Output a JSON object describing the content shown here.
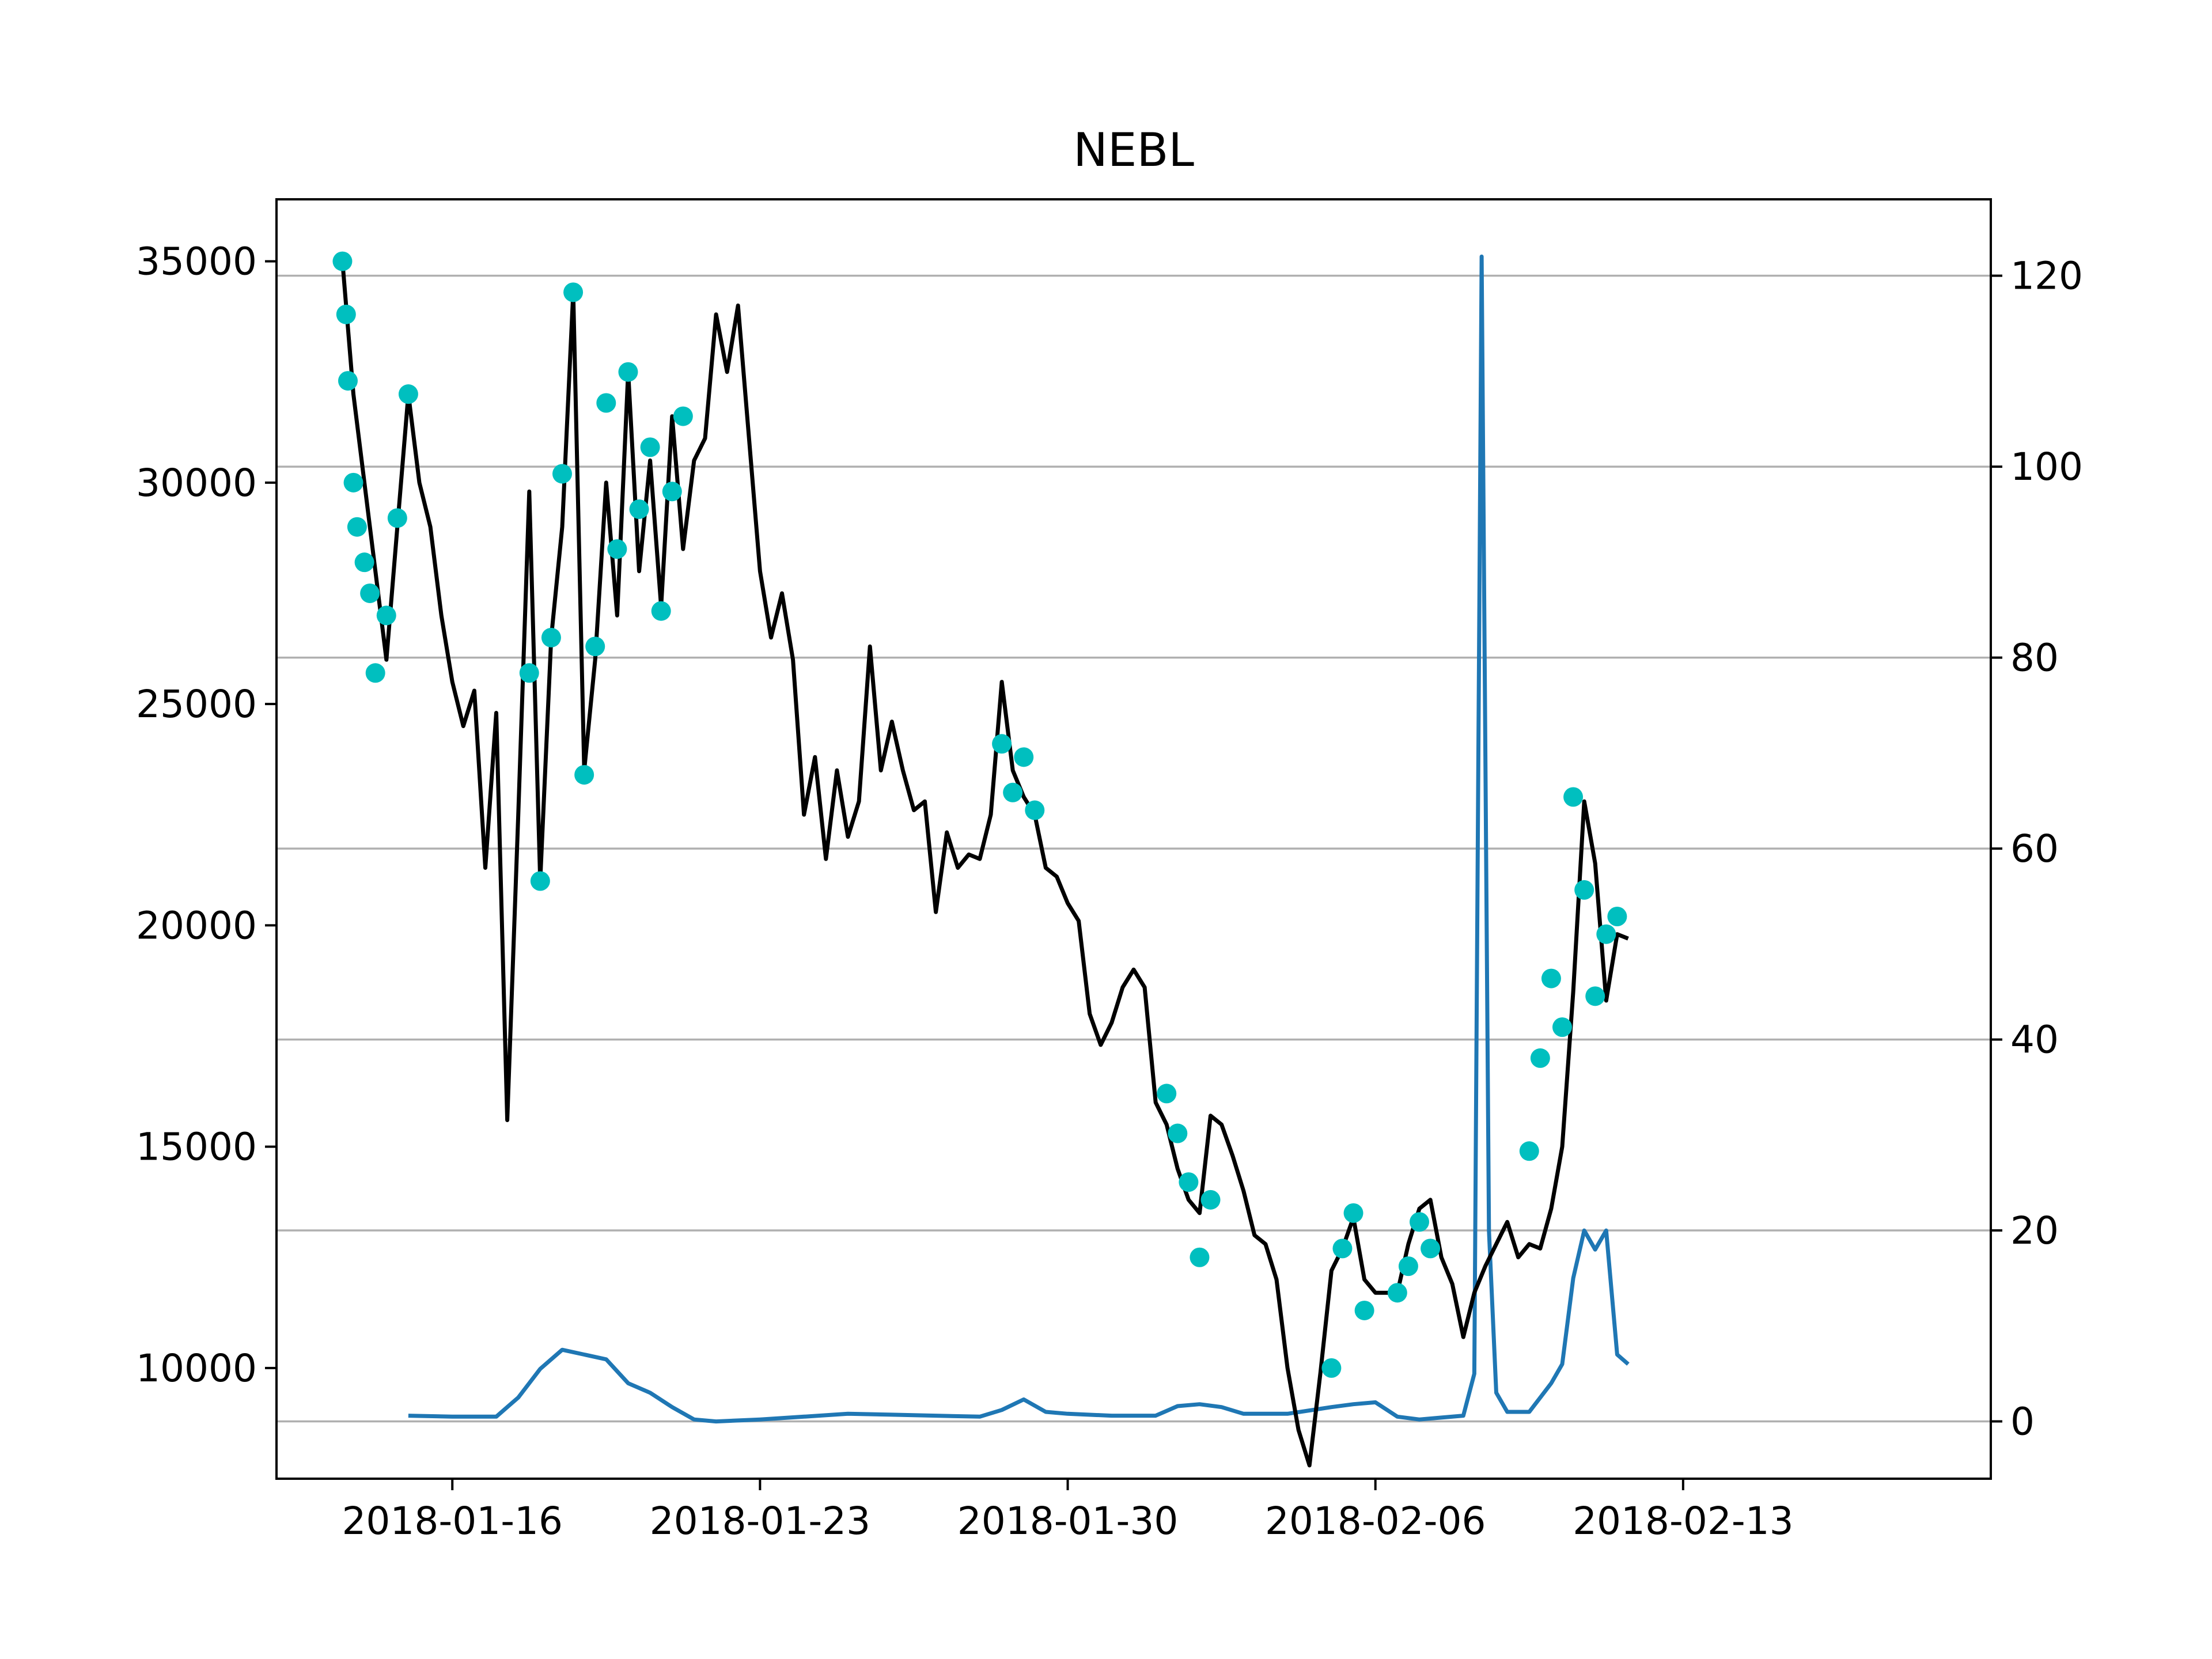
{
  "chart_data": {
    "type": "line",
    "title": "NEBL",
    "xlabel": "",
    "ylabel_left": "",
    "ylabel_right": "",
    "grid": "horizontal (right axis)",
    "x_range": [
      "2018-01-12",
      "2018-02-20"
    ],
    "x_ticks": [
      "2018-01-16",
      "2018-01-23",
      "2018-01-30",
      "2018-02-06",
      "2018-02-13"
    ],
    "left_axis": {
      "ylim": [
        7500,
        36400
      ],
      "ticks": [
        10000,
        15000,
        20000,
        25000,
        30000,
        35000
      ]
    },
    "right_axis": {
      "ylim": [
        -6,
        128
      ],
      "ticks": [
        0,
        20,
        40,
        60,
        80,
        100,
        120
      ]
    },
    "colors": {
      "price": "#000000",
      "markers": "#00bfbf",
      "volume": "#1f77b4",
      "grid": "#b0b0b0"
    },
    "series": [
      {
        "axis": "left",
        "color": "#000000",
        "points": [
          [
            "2018-01-13T12:00",
            35000
          ],
          [
            "2018-01-13T18:00",
            32000
          ],
          [
            "2018-01-14T00:00",
            30000
          ],
          [
            "2018-01-14T06:00",
            28000
          ],
          [
            "2018-01-14T12:00",
            26000
          ],
          [
            "2018-01-14T18:00",
            29000
          ],
          [
            "2018-01-15T00:00",
            32000
          ],
          [
            "2018-01-15T06:00",
            30000
          ],
          [
            "2018-01-15T12:00",
            29000
          ],
          [
            "2018-01-15T18:00",
            27000
          ],
          [
            "2018-01-16T00:00",
            25500
          ],
          [
            "2018-01-16T06:00",
            24500
          ],
          [
            "2018-01-16T12:00",
            25300
          ],
          [
            "2018-01-16T18:00",
            21300
          ],
          [
            "2018-01-17T00:00",
            24800
          ],
          [
            "2018-01-17T06:00",
            15600
          ],
          [
            "2018-01-17T12:00",
            22500
          ],
          [
            "2018-01-17T18:00",
            29800
          ],
          [
            "2018-01-18T00:00",
            21000
          ],
          [
            "2018-01-18T06:00",
            26500
          ],
          [
            "2018-01-18T12:00",
            29000
          ],
          [
            "2018-01-18T18:00",
            34300
          ],
          [
            "2018-01-19T00:00",
            23500
          ],
          [
            "2018-01-19T06:00",
            26000
          ],
          [
            "2018-01-19T12:00",
            30000
          ],
          [
            "2018-01-19T18:00",
            27000
          ],
          [
            "2018-01-20T00:00",
            32500
          ],
          [
            "2018-01-20T06:00",
            28000
          ],
          [
            "2018-01-20T12:00",
            30500
          ],
          [
            "2018-01-20T18:00",
            27200
          ],
          [
            "2018-01-21T00:00",
            31500
          ],
          [
            "2018-01-21T06:00",
            28500
          ],
          [
            "2018-01-21T12:00",
            30500
          ],
          [
            "2018-01-21T18:00",
            31000
          ],
          [
            "2018-01-22T00:00",
            33800
          ],
          [
            "2018-01-22T06:00",
            32500
          ],
          [
            "2018-01-22T12:00",
            34000
          ],
          [
            "2018-01-22T18:00",
            31000
          ],
          [
            "2018-01-23T00:00",
            28000
          ],
          [
            "2018-01-23T06:00",
            26500
          ],
          [
            "2018-01-23T12:00",
            27500
          ],
          [
            "2018-01-23T18:00",
            26000
          ],
          [
            "2018-01-24T00:00",
            22500
          ],
          [
            "2018-01-24T06:00",
            23800
          ],
          [
            "2018-01-24T12:00",
            21500
          ],
          [
            "2018-01-24T18:00",
            23500
          ],
          [
            "2018-01-25T00:00",
            22000
          ],
          [
            "2018-01-25T06:00",
            22800
          ],
          [
            "2018-01-25T12:00",
            26300
          ],
          [
            "2018-01-25T18:00",
            23500
          ],
          [
            "2018-01-26T00:00",
            24600
          ],
          [
            "2018-01-26T06:00",
            23500
          ],
          [
            "2018-01-26T12:00",
            22600
          ],
          [
            "2018-01-26T18:00",
            22800
          ],
          [
            "2018-01-27T00:00",
            20300
          ],
          [
            "2018-01-27T06:00",
            22100
          ],
          [
            "2018-01-27T12:00",
            21300
          ],
          [
            "2018-01-27T18:00",
            21600
          ],
          [
            "2018-01-28T00:00",
            21500
          ],
          [
            "2018-01-28T06:00",
            22500
          ],
          [
            "2018-01-28T12:00",
            25500
          ],
          [
            "2018-01-28T18:00",
            23500
          ],
          [
            "2018-01-29T00:00",
            22900
          ],
          [
            "2018-01-29T06:00",
            22500
          ],
          [
            "2018-01-29T12:00",
            21300
          ],
          [
            "2018-01-29T18:00",
            21100
          ],
          [
            "2018-01-30T00:00",
            20500
          ],
          [
            "2018-01-30T06:00",
            20100
          ],
          [
            "2018-01-30T12:00",
            18000
          ],
          [
            "2018-01-30T18:00",
            17300
          ],
          [
            "2018-01-31T00:00",
            17800
          ],
          [
            "2018-01-31T06:00",
            18600
          ],
          [
            "2018-01-31T12:00",
            19000
          ],
          [
            "2018-01-31T18:00",
            18600
          ],
          [
            "2018-02-01T00:00",
            16000
          ],
          [
            "2018-02-01T06:00",
            15500
          ],
          [
            "2018-02-01T12:00",
            14500
          ],
          [
            "2018-02-01T18:00",
            13800
          ],
          [
            "2018-02-02T00:00",
            13500
          ],
          [
            "2018-02-02T06:00",
            15700
          ],
          [
            "2018-02-02T12:00",
            15500
          ],
          [
            "2018-02-02T18:00",
            14800
          ],
          [
            "2018-02-03T00:00",
            14000
          ],
          [
            "2018-02-03T06:00",
            13000
          ],
          [
            "2018-02-03T12:00",
            12800
          ],
          [
            "2018-02-03T18:00",
            12000
          ],
          [
            "2018-02-04T00:00",
            10000
          ],
          [
            "2018-02-04T06:00",
            8600
          ],
          [
            "2018-02-04T12:00",
            7800
          ],
          [
            "2018-02-04T18:00",
            9900
          ],
          [
            "2018-02-05T00:00",
            12200
          ],
          [
            "2018-02-05T06:00",
            12700
          ],
          [
            "2018-02-05T12:00",
            13400
          ],
          [
            "2018-02-05T18:00",
            12000
          ],
          [
            "2018-02-06T00:00",
            11700
          ],
          [
            "2018-02-06T06:00",
            11700
          ],
          [
            "2018-02-06T12:00",
            11700
          ],
          [
            "2018-02-06T18:00",
            12800
          ],
          [
            "2018-02-07T00:00",
            13600
          ],
          [
            "2018-02-07T06:00",
            13800
          ],
          [
            "2018-02-07T12:00",
            12500
          ],
          [
            "2018-02-07T18:00",
            11900
          ],
          [
            "2018-02-08T00:00",
            10700
          ],
          [
            "2018-02-08T06:00",
            11700
          ],
          [
            "2018-02-08T12:00",
            12300
          ],
          [
            "2018-02-08T18:00",
            12800
          ],
          [
            "2018-02-09T00:00",
            13300
          ],
          [
            "2018-02-09T06:00",
            12500
          ],
          [
            "2018-02-09T12:00",
            12800
          ],
          [
            "2018-02-09T18:00",
            12700
          ],
          [
            "2018-02-10T00:00",
            13600
          ],
          [
            "2018-02-10T06:00",
            15000
          ],
          [
            "2018-02-10T12:00",
            18500
          ],
          [
            "2018-02-10T18:00",
            22800
          ],
          [
            "2018-02-11T00:00",
            21400
          ],
          [
            "2018-02-11T06:00",
            18300
          ],
          [
            "2018-02-11T12:00",
            19800
          ],
          [
            "2018-02-11T18:00",
            19700
          ]
        ]
      },
      {
        "axis": "left",
        "color": "#00bfbf",
        "markers_only": true,
        "points": [
          [
            "2018-01-13T12:00",
            35000
          ],
          [
            "2018-01-13T14:00",
            33800
          ],
          [
            "2018-01-13T15:00",
            32300
          ],
          [
            "2018-01-13T18:00",
            30000
          ],
          [
            "2018-01-13T20:00",
            29000
          ],
          [
            "2018-01-14T00:00",
            28200
          ],
          [
            "2018-01-14T03:00",
            27500
          ],
          [
            "2018-01-14T06:00",
            25700
          ],
          [
            "2018-01-14T12:00",
            27000
          ],
          [
            "2018-01-14T18:00",
            29200
          ],
          [
            "2018-01-15T00:00",
            32000
          ],
          [
            "2018-01-17T18:00",
            25700
          ],
          [
            "2018-01-18T00:00",
            21000
          ],
          [
            "2018-01-18T06:00",
            26500
          ],
          [
            "2018-01-18T12:00",
            30200
          ],
          [
            "2018-01-18T18:00",
            34300
          ],
          [
            "2018-01-19T00:00",
            23400
          ],
          [
            "2018-01-19T06:00",
            26300
          ],
          [
            "2018-01-19T12:00",
            31800
          ],
          [
            "2018-01-19T18:00",
            28500
          ],
          [
            "2018-01-20T00:00",
            32500
          ],
          [
            "2018-01-20T06:00",
            29400
          ],
          [
            "2018-01-20T12:00",
            30800
          ],
          [
            "2018-01-20T18:00",
            27100
          ],
          [
            "2018-01-21T00:00",
            29800
          ],
          [
            "2018-01-21T06:00",
            31500
          ],
          [
            "2018-01-28T12:00",
            24100
          ],
          [
            "2018-01-28T18:00",
            23000
          ],
          [
            "2018-01-29T00:00",
            23800
          ],
          [
            "2018-01-29T06:00",
            22600
          ],
          [
            "2018-02-01T06:00",
            16200
          ],
          [
            "2018-02-01T12:00",
            15300
          ],
          [
            "2018-02-01T18:00",
            14200
          ],
          [
            "2018-02-02T00:00",
            12500
          ],
          [
            "2018-02-02T06:00",
            13800
          ],
          [
            "2018-02-05T00:00",
            10000
          ],
          [
            "2018-02-05T06:00",
            12700
          ],
          [
            "2018-02-05T12:00",
            13500
          ],
          [
            "2018-02-05T18:00",
            11300
          ],
          [
            "2018-02-06T12:00",
            11700
          ],
          [
            "2018-02-06T18:00",
            12300
          ],
          [
            "2018-02-07T00:00",
            13300
          ],
          [
            "2018-02-07T06:00",
            12700
          ],
          [
            "2018-02-09T12:00",
            14900
          ],
          [
            "2018-02-09T18:00",
            17000
          ],
          [
            "2018-02-10T00:00",
            18800
          ],
          [
            "2018-02-10T06:00",
            17700
          ],
          [
            "2018-02-10T12:00",
            22900
          ],
          [
            "2018-02-10T18:00",
            20800
          ],
          [
            "2018-02-11T00:00",
            18400
          ],
          [
            "2018-02-11T06:00",
            19800
          ],
          [
            "2018-02-11T12:00",
            20200
          ]
        ]
      },
      {
        "axis": "right",
        "color": "#1f77b4",
        "points": [
          [
            "2018-01-15T00:00",
            0.6
          ],
          [
            "2018-01-16T00:00",
            0.5
          ],
          [
            "2018-01-17T00:00",
            0.5
          ],
          [
            "2018-01-17T12:00",
            2.5
          ],
          [
            "2018-01-18T00:00",
            5.5
          ],
          [
            "2018-01-18T12:00",
            7.5
          ],
          [
            "2018-01-19T00:00",
            7.0
          ],
          [
            "2018-01-19T12:00",
            6.5
          ],
          [
            "2018-01-20T00:00",
            4.0
          ],
          [
            "2018-01-20T12:00",
            3.0
          ],
          [
            "2018-01-21T00:00",
            1.5
          ],
          [
            "2018-01-21T12:00",
            0.2
          ],
          [
            "2018-01-22T00:00",
            0.0
          ],
          [
            "2018-01-23T00:00",
            0.2
          ],
          [
            "2018-01-24T00:00",
            0.5
          ],
          [
            "2018-01-25T00:00",
            0.8
          ],
          [
            "2018-01-26T00:00",
            0.7
          ],
          [
            "2018-01-27T00:00",
            0.6
          ],
          [
            "2018-01-28T00:00",
            0.5
          ],
          [
            "2018-01-28T12:00",
            1.2
          ],
          [
            "2018-01-29T00:00",
            2.3
          ],
          [
            "2018-01-29T12:00",
            1.0
          ],
          [
            "2018-01-30T00:00",
            0.8
          ],
          [
            "2018-01-31T00:00",
            0.6
          ],
          [
            "2018-02-01T00:00",
            0.6
          ],
          [
            "2018-02-01T12:00",
            1.6
          ],
          [
            "2018-02-02T00:00",
            1.8
          ],
          [
            "2018-02-02T12:00",
            1.5
          ],
          [
            "2018-02-03T00:00",
            0.8
          ],
          [
            "2018-02-04T00:00",
            0.8
          ],
          [
            "2018-02-05T00:00",
            1.5
          ],
          [
            "2018-02-05T12:00",
            1.8
          ],
          [
            "2018-02-06T00:00",
            2.0
          ],
          [
            "2018-02-06T12:00",
            0.5
          ],
          [
            "2018-02-07T00:00",
            0.2
          ],
          [
            "2018-02-07T12:00",
            0.4
          ],
          [
            "2018-02-08T00:00",
            0.6
          ],
          [
            "2018-02-08T06:00",
            5.0
          ],
          [
            "2018-02-08T10:00",
            122.0
          ],
          [
            "2018-02-08T14:00",
            20.0
          ],
          [
            "2018-02-08T18:00",
            3.0
          ],
          [
            "2018-02-09T00:00",
            1.0
          ],
          [
            "2018-02-09T12:00",
            1.0
          ],
          [
            "2018-02-10T00:00",
            4.0
          ],
          [
            "2018-02-10T06:00",
            6.0
          ],
          [
            "2018-02-10T12:00",
            15.0
          ],
          [
            "2018-02-10T18:00",
            20.0
          ],
          [
            "2018-02-11T00:00",
            18.0
          ],
          [
            "2018-02-11T06:00",
            20.0
          ],
          [
            "2018-02-11T12:00",
            7.0
          ],
          [
            "2018-02-11T18:00",
            6.0
          ]
        ]
      }
    ]
  }
}
